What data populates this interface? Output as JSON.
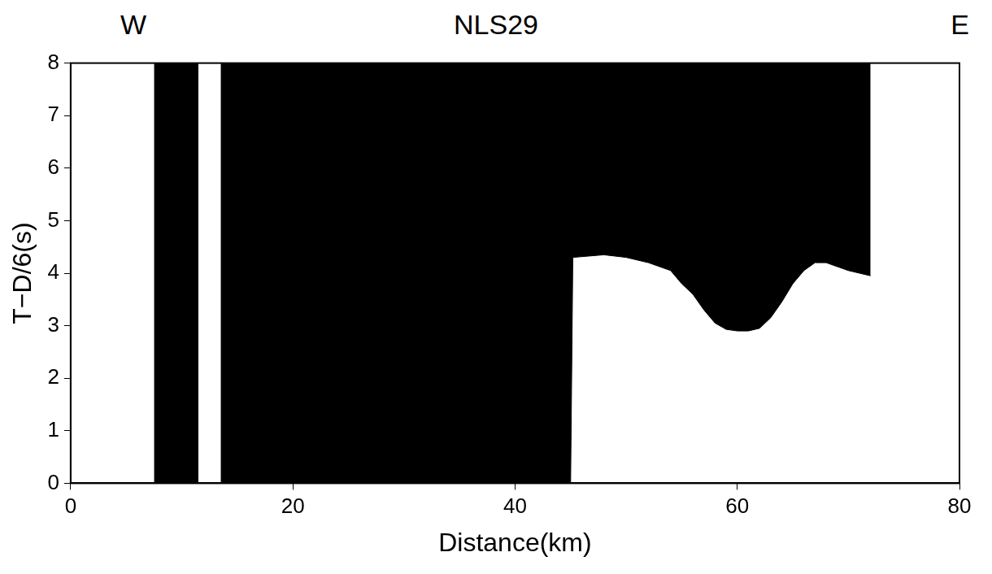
{
  "chart_data": {
    "type": "area",
    "title": "NLS29",
    "annotations": [
      "W",
      "E"
    ],
    "x_label": "Distance(km)",
    "y_label": "T−D/6(s)",
    "x": [
      7.5,
      11.5,
      12.5,
      13.5,
      45,
      45.2,
      48,
      50,
      52,
      54,
      55,
      56,
      57,
      58,
      59,
      60,
      61,
      62,
      63,
      64,
      65,
      66,
      67,
      68,
      70,
      72
    ],
    "values": [
      0,
      0,
      null,
      0,
      0,
      4.3,
      4.35,
      4.3,
      4.2,
      4.05,
      3.8,
      3.6,
      3.3,
      3.05,
      2.93,
      2.9,
      2.9,
      2.95,
      3.15,
      3.45,
      3.8,
      4.05,
      4.2,
      4.2,
      4.05,
      3.95
    ],
    "color": "#000000",
    "xlim": [
      0,
      80
    ],
    "xticks": [
      0,
      20,
      40,
      60,
      80
    ],
    "ylim": [
      0,
      8
    ],
    "yticks": [
      0,
      1,
      2,
      3,
      4,
      5,
      6,
      7,
      8
    ],
    "grid": false
  }
}
